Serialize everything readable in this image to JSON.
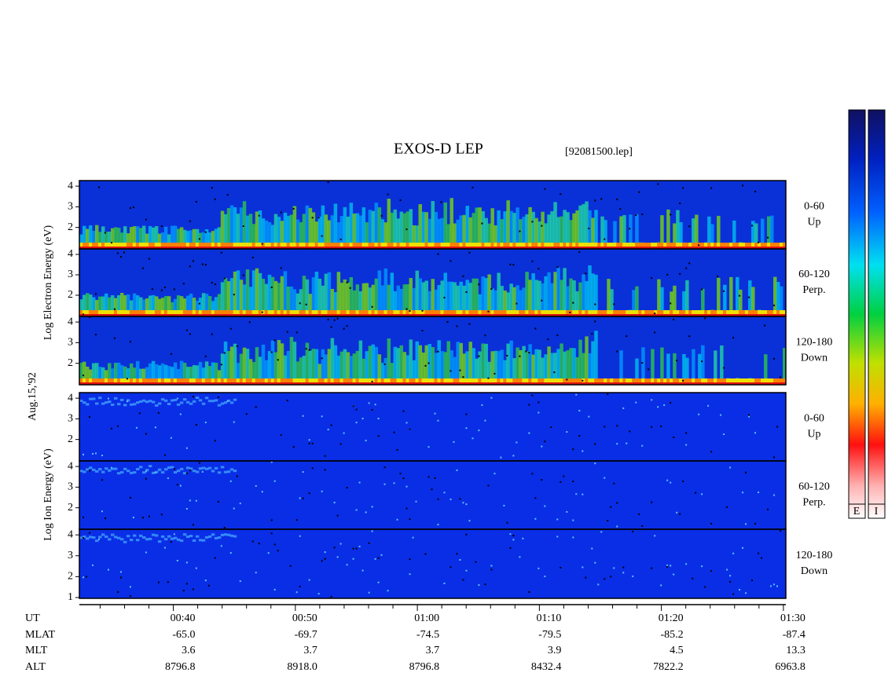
{
  "title": "EXOS-D LEP",
  "file": "[92081500.lep]",
  "date": "Aug.15,'92",
  "electron": {
    "ylabel": "Log Electron Energy (eV)",
    "panels": [
      {
        "label": [
          "0-60",
          "Up"
        ],
        "ylim": [
          0.96,
          4.27
        ],
        "yticks": [
          2,
          3,
          4
        ]
      },
      {
        "label": [
          "60-120",
          "Perp."
        ],
        "ylim": [
          0.96,
          4.27
        ],
        "yticks": [
          2,
          3,
          4
        ]
      },
      {
        "label": [
          "120-180",
          "Down"
        ],
        "ylim": [
          0.96,
          4.27
        ],
        "yticks": [
          2,
          3,
          4
        ]
      }
    ]
  },
  "ion": {
    "ylabel": "Log Ion Energy (eV)",
    "panels": [
      {
        "label": [
          "0-60",
          "Up"
        ],
        "ylim": [
          0.96,
          4.27
        ],
        "yticks": [
          2,
          3,
          4
        ]
      },
      {
        "label": [
          "60-120",
          "Perp."
        ],
        "ylim": [
          0.96,
          4.27
        ],
        "yticks": [
          2,
          3,
          4
        ]
      },
      {
        "label": [
          "120-180",
          "Down"
        ],
        "ylim": [
          0.96,
          4.27
        ],
        "yticks": [
          1,
          2,
          3,
          4
        ]
      }
    ]
  },
  "time_axis": {
    "xlim": [
      32.3,
      90.2
    ],
    "xticks": [
      {
        "value": 40,
        "label": "00:40"
      },
      {
        "value": 50,
        "label": "00:50"
      },
      {
        "value": 60,
        "label": "01:00"
      },
      {
        "value": 70,
        "label": "01:10"
      },
      {
        "value": 80,
        "label": "01:20"
      },
      {
        "value": 90,
        "label": "01:30"
      }
    ],
    "minor_xticks": [
      34,
      36,
      38,
      42,
      44,
      46,
      48,
      52,
      54,
      56,
      58,
      62,
      64,
      66,
      68,
      72,
      74,
      76,
      78,
      82,
      84,
      86,
      88
    ]
  },
  "orbit": {
    "rows": [
      {
        "name": "UT",
        "values": []
      },
      {
        "name": "MLAT",
        "values": [
          "-65.0",
          "-69.7",
          "-74.5",
          "-79.5",
          "-85.2",
          "-87.4"
        ]
      },
      {
        "name": "MLT",
        "values": [
          "3.6",
          "3.7",
          "3.7",
          "3.9",
          "4.5",
          "13.3"
        ]
      },
      {
        "name": "ALT",
        "values": [
          "8796.8",
          "8918.0",
          "8796.8",
          "8432.4",
          "7822.2",
          "6963.8"
        ]
      }
    ]
  },
  "colorbar": [
    "E",
    "I"
  ]
}
